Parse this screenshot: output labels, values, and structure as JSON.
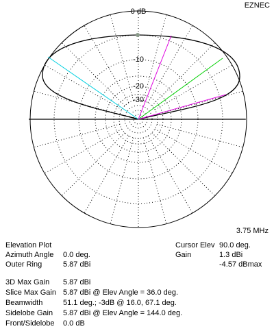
{
  "header": {
    "program": "EZNEC",
    "frequency": "3.75 MHz"
  },
  "plot_labels": [
    "0 dB",
    "-10",
    "-20",
    "-30"
  ],
  "info": {
    "plot_type": "Elevation Plot",
    "rows": [
      [
        "Azimuth Angle",
        "0.0 deg."
      ],
      [
        "Outer Ring",
        "5.87 dBi"
      ]
    ],
    "cursor": {
      "title": "Cursor Elev",
      "elev": "90.0 deg.",
      "gain_label": "Gain",
      "gain": "1.3 dBi",
      "gain_max": "-4.57 dBmax"
    },
    "stats": [
      [
        "3D Max Gain",
        "5.87 dBi"
      ],
      [
        "Slice Max Gain",
        "5.87 dBi @ Elev Angle = 36.0 deg."
      ],
      [
        "Beamwidth",
        "51.1 deg.; -3dB @ 16.0, 67.1 deg."
      ],
      [
        "Sidelobe Gain",
        "5.87 dBi @ Elev Angle = 144.0 deg."
      ],
      [
        "Front/Sidelobe",
        "0.0 dB"
      ]
    ]
  }
}
